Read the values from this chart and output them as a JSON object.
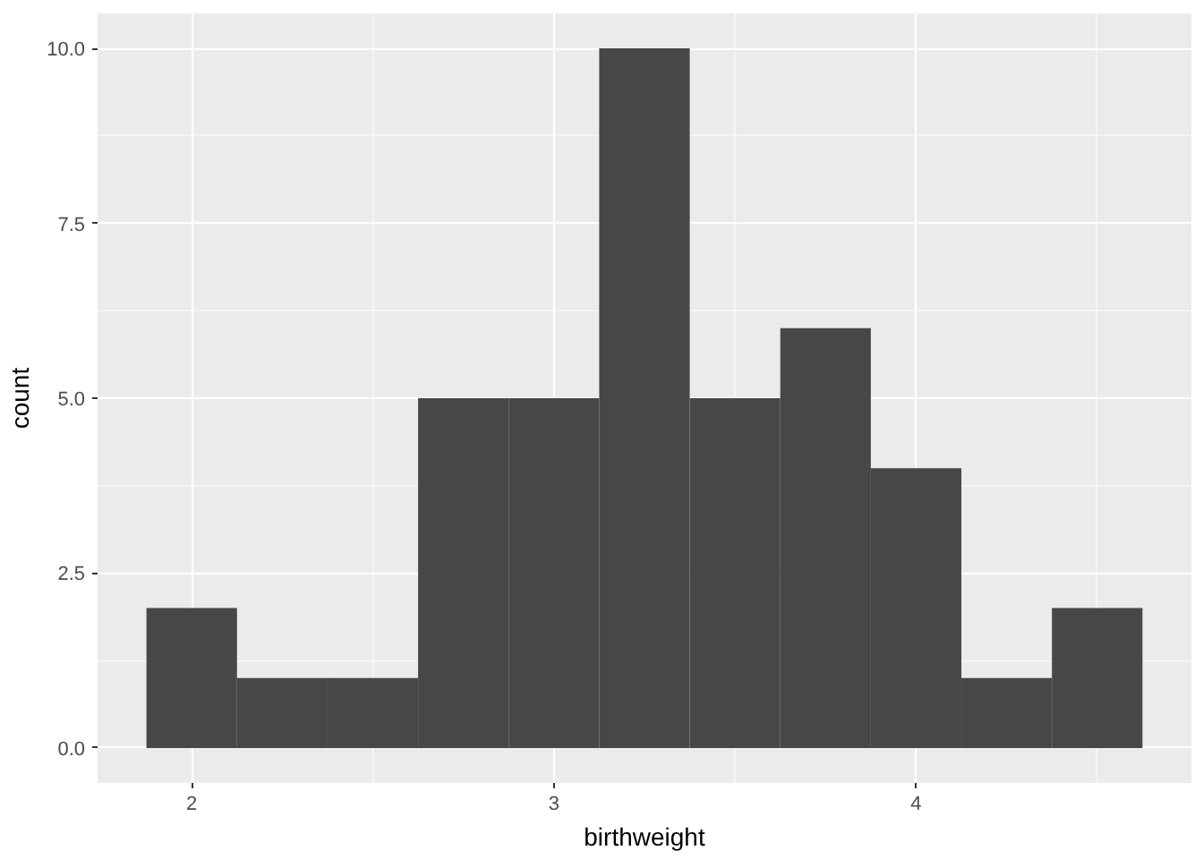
{
  "chart_data": {
    "type": "histogram",
    "xlabel": "birthweight",
    "ylabel": "count",
    "bins": [
      1.875,
      2.125,
      2.375,
      2.625,
      2.875,
      3.125,
      3.375,
      3.625,
      3.875,
      4.125,
      4.375,
      4.625
    ],
    "values": [
      2,
      1,
      1,
      5,
      5,
      10,
      5,
      6,
      4,
      1,
      2
    ],
    "color": "#474747",
    "xlim": [
      1.74,
      4.76
    ],
    "ylim": [
      -0.5,
      10.5
    ],
    "xticks": [
      2,
      3,
      4
    ],
    "yticks": [
      {
        "value": 0,
        "label": "0.0"
      },
      {
        "value": 2.5,
        "label": "2.5"
      },
      {
        "value": 5,
        "label": "5.0"
      },
      {
        "value": 7.5,
        "label": "7.5"
      },
      {
        "value": 10,
        "label": "10.0"
      }
    ],
    "grid": true
  }
}
